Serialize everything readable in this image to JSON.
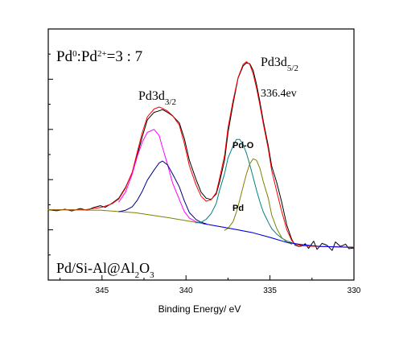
{
  "chart_data": {
    "type": "line",
    "xlabel": "Binding Energy/ eV",
    "xlim": [
      348.2,
      330
    ],
    "x_reversed": true,
    "xticks": [
      345,
      340,
      335,
      330
    ],
    "ylim": [
      0,
      100
    ],
    "annotations": {
      "ratio": {
        "base": "Pd",
        "sup0": "0",
        "mid": ":Pd",
        "sup2": "2+",
        "tail": "=3 : 7"
      },
      "sample": {
        "base": "Pd/Si-Al@Al",
        "sub": "2",
        "mid": "O",
        "sub2": "3"
      },
      "pd3d32": {
        "base": "Pd3d",
        "sub": "3/2"
      },
      "pd3d52": {
        "base": "Pd3d",
        "sub": "5/2"
      },
      "peak_energy": "336.4ev",
      "pd_o": "Pd-O",
      "pd": "Pd"
    },
    "series": [
      {
        "key": "raw",
        "color": "#000000",
        "width": 1.0,
        "points": [
          [
            348.2,
            28.0
          ],
          [
            347.7,
            27.6
          ],
          [
            347.2,
            28.2
          ],
          [
            346.8,
            27.5
          ],
          [
            346.3,
            28.5
          ],
          [
            345.9,
            27.8
          ],
          [
            345.5,
            28.9
          ],
          [
            345.1,
            29.6
          ],
          [
            344.8,
            29.0
          ],
          [
            344.4,
            30.6
          ],
          [
            344.0,
            32.6
          ],
          [
            343.6,
            36.9
          ],
          [
            343.2,
            42.8
          ],
          [
            342.9,
            50.0
          ],
          [
            342.6,
            57.1
          ],
          [
            342.3,
            63.8
          ],
          [
            341.9,
            66.8
          ],
          [
            341.6,
            67.4
          ],
          [
            341.4,
            67.9
          ],
          [
            341.1,
            66.8
          ],
          [
            340.8,
            65.4
          ],
          [
            340.4,
            62.6
          ],
          [
            340.1,
            56.4
          ],
          [
            339.8,
            47.7
          ],
          [
            339.4,
            40.1
          ],
          [
            339.1,
            35.0
          ],
          [
            338.8,
            32.6
          ],
          [
            338.5,
            32.1
          ],
          [
            338.2,
            34.3
          ],
          [
            338.0,
            39.1
          ],
          [
            337.7,
            47.8
          ],
          [
            337.5,
            58.7
          ],
          [
            337.2,
            70.2
          ],
          [
            336.9,
            80.4
          ],
          [
            336.6,
            85.3
          ],
          [
            336.4,
            86.5
          ],
          [
            336.2,
            86.2
          ],
          [
            336.0,
            83.5
          ],
          [
            335.8,
            77.9
          ],
          [
            335.6,
            71.0
          ],
          [
            335.4,
            63.3
          ],
          [
            335.1,
            53.4
          ],
          [
            334.9,
            45.4
          ],
          [
            334.6,
            38.8
          ],
          [
            334.3,
            31.0
          ],
          [
            334.0,
            21.9
          ],
          [
            333.7,
            16.2
          ],
          [
            333.5,
            13.9
          ],
          [
            333.3,
            13.4
          ],
          [
            333.1,
            13.6
          ],
          [
            332.9,
            14.5
          ],
          [
            332.7,
            12.6
          ],
          [
            332.4,
            15.5
          ],
          [
            332.2,
            12.2
          ],
          [
            331.9,
            14.6
          ],
          [
            331.6,
            13.8
          ],
          [
            331.3,
            11.8
          ],
          [
            331.1,
            15.2
          ],
          [
            330.8,
            13.4
          ],
          [
            330.5,
            14.3
          ],
          [
            330.3,
            12.5
          ],
          [
            330.0,
            12.8
          ]
        ]
      },
      {
        "key": "envelope",
        "color": "#ff0000",
        "width": 1.0,
        "points": [
          [
            348.2,
            28.0
          ],
          [
            346.0,
            28.0
          ],
          [
            345.0,
            29.0
          ],
          [
            344.4,
            30.4
          ],
          [
            344.0,
            32.3
          ],
          [
            343.6,
            36.6
          ],
          [
            343.2,
            43.0
          ],
          [
            342.9,
            51.0
          ],
          [
            342.6,
            58.8
          ],
          [
            342.3,
            65.0
          ],
          [
            341.9,
            68.1
          ],
          [
            341.6,
            68.9
          ],
          [
            341.4,
            68.4
          ],
          [
            341.1,
            67.3
          ],
          [
            340.8,
            65.5
          ],
          [
            340.4,
            61.7
          ],
          [
            340.1,
            54.5
          ],
          [
            339.8,
            45.5
          ],
          [
            339.4,
            37.9
          ],
          [
            339.1,
            33.4
          ],
          [
            338.8,
            31.4
          ],
          [
            338.5,
            32.0
          ],
          [
            338.2,
            34.8
          ],
          [
            338.0,
            40.6
          ],
          [
            337.7,
            49.7
          ],
          [
            337.5,
            60.6
          ],
          [
            337.2,
            71.4
          ],
          [
            336.9,
            80.6
          ],
          [
            336.6,
            85.9
          ],
          [
            336.4,
            87.0
          ],
          [
            336.2,
            85.9
          ],
          [
            336.0,
            82.1
          ],
          [
            335.8,
            76.4
          ],
          [
            335.6,
            69.6
          ],
          [
            335.4,
            62.2
          ],
          [
            335.1,
            52.2
          ],
          [
            334.9,
            43.7
          ],
          [
            334.6,
            35.3
          ],
          [
            334.3,
            27.3
          ],
          [
            334.0,
            20.1
          ],
          [
            333.7,
            15.7
          ],
          [
            333.5,
            14.3
          ],
          [
            333.0,
            13.6
          ],
          [
            332.0,
            13.4
          ],
          [
            330.0,
            13.1
          ]
        ]
      },
      {
        "key": "baseline",
        "color": "#808000",
        "width": 1.0,
        "points": [
          [
            348.2,
            28.0
          ],
          [
            345.0,
            27.8
          ],
          [
            343.0,
            26.8
          ],
          [
            341.0,
            24.8
          ],
          [
            339.0,
            22.5
          ],
          [
            338.0,
            21.3
          ],
          [
            337.0,
            20.1
          ],
          [
            336.0,
            18.8
          ],
          [
            335.0,
            17.0
          ],
          [
            334.0,
            15.0
          ],
          [
            333.0,
            14.0
          ],
          [
            332.0,
            13.4
          ],
          [
            330.0,
            13.0
          ]
        ]
      },
      {
        "key": "pd3d32_pdo",
        "color": "#ff00ff",
        "width": 1.0,
        "points": [
          [
            344.0,
            31.1
          ],
          [
            343.6,
            35.0
          ],
          [
            343.2,
            42.2
          ],
          [
            342.9,
            49.3
          ],
          [
            342.6,
            55.0
          ],
          [
            342.3,
            58.8
          ],
          [
            341.9,
            60.0
          ],
          [
            341.6,
            57.6
          ],
          [
            341.4,
            52.8
          ],
          [
            341.1,
            46.1
          ],
          [
            340.8,
            38.7
          ],
          [
            340.4,
            32.1
          ],
          [
            340.1,
            27.3
          ],
          [
            339.8,
            24.7
          ],
          [
            339.4,
            23.2
          ],
          [
            339.1,
            22.8
          ]
        ]
      },
      {
        "key": "pd3d32_pd",
        "color": "#000080",
        "width": 1.0,
        "points": [
          [
            344.0,
            27.2
          ],
          [
            343.6,
            27.8
          ],
          [
            343.2,
            29.2
          ],
          [
            342.9,
            31.8
          ],
          [
            342.6,
            35.4
          ],
          [
            342.3,
            39.8
          ],
          [
            341.9,
            43.8
          ],
          [
            341.6,
            46.6
          ],
          [
            341.4,
            47.4
          ],
          [
            341.1,
            45.9
          ],
          [
            340.8,
            42.3
          ],
          [
            340.4,
            37.1
          ],
          [
            340.1,
            31.6
          ],
          [
            339.8,
            26.9
          ],
          [
            339.4,
            24.1
          ],
          [
            339.1,
            23.0
          ],
          [
            338.8,
            22.4
          ]
        ]
      },
      {
        "key": "pd3d52_pdo",
        "color": "#008080",
        "width": 1.0,
        "points": [
          [
            339.4,
            22.8
          ],
          [
            339.1,
            23.0
          ],
          [
            338.8,
            24.2
          ],
          [
            338.5,
            26.5
          ],
          [
            338.2,
            30.5
          ],
          [
            338.0,
            35.8
          ],
          [
            337.7,
            42.4
          ],
          [
            337.5,
            48.6
          ],
          [
            337.2,
            53.4
          ],
          [
            337.0,
            56.0
          ],
          [
            336.8,
            56.0
          ],
          [
            336.6,
            54.0
          ],
          [
            336.4,
            50.5
          ],
          [
            336.2,
            46.0
          ],
          [
            336.0,
            40.9
          ],
          [
            335.8,
            35.8
          ],
          [
            335.6,
            31.1
          ],
          [
            335.4,
            27.1
          ],
          [
            335.1,
            23.0
          ],
          [
            334.9,
            20.5
          ],
          [
            334.6,
            18.3
          ],
          [
            334.3,
            16.7
          ],
          [
            334.0,
            15.6
          ],
          [
            333.5,
            14.4
          ]
        ]
      },
      {
        "key": "pd3d52_pd",
        "color": "#808000",
        "width": 1.0,
        "points": [
          [
            337.7,
            19.8
          ],
          [
            337.5,
            20.6
          ],
          [
            337.2,
            23.2
          ],
          [
            337.0,
            27.0
          ],
          [
            336.8,
            31.9
          ],
          [
            336.6,
            37.2
          ],
          [
            336.4,
            42.3
          ],
          [
            336.2,
            46.3
          ],
          [
            336.0,
            48.3
          ],
          [
            335.8,
            47.7
          ],
          [
            335.6,
            44.5
          ],
          [
            335.4,
            39.2
          ],
          [
            335.1,
            32.6
          ],
          [
            334.9,
            26.0
          ],
          [
            334.6,
            20.5
          ],
          [
            334.3,
            16.9
          ],
          [
            334.0,
            15.1
          ],
          [
            333.7,
            14.3
          ]
        ]
      },
      {
        "key": "baseline_blue",
        "color": "#0000ff",
        "width": 1.0,
        "points": [
          [
            339.0,
            22.5
          ],
          [
            338.0,
            21.3
          ],
          [
            337.0,
            20.1
          ],
          [
            336.0,
            18.8
          ],
          [
            335.0,
            17.0
          ],
          [
            334.0,
            15.0
          ],
          [
            333.0,
            14.0
          ],
          [
            332.0,
            13.4
          ],
          [
            330.0,
            13.0
          ]
        ]
      }
    ]
  }
}
